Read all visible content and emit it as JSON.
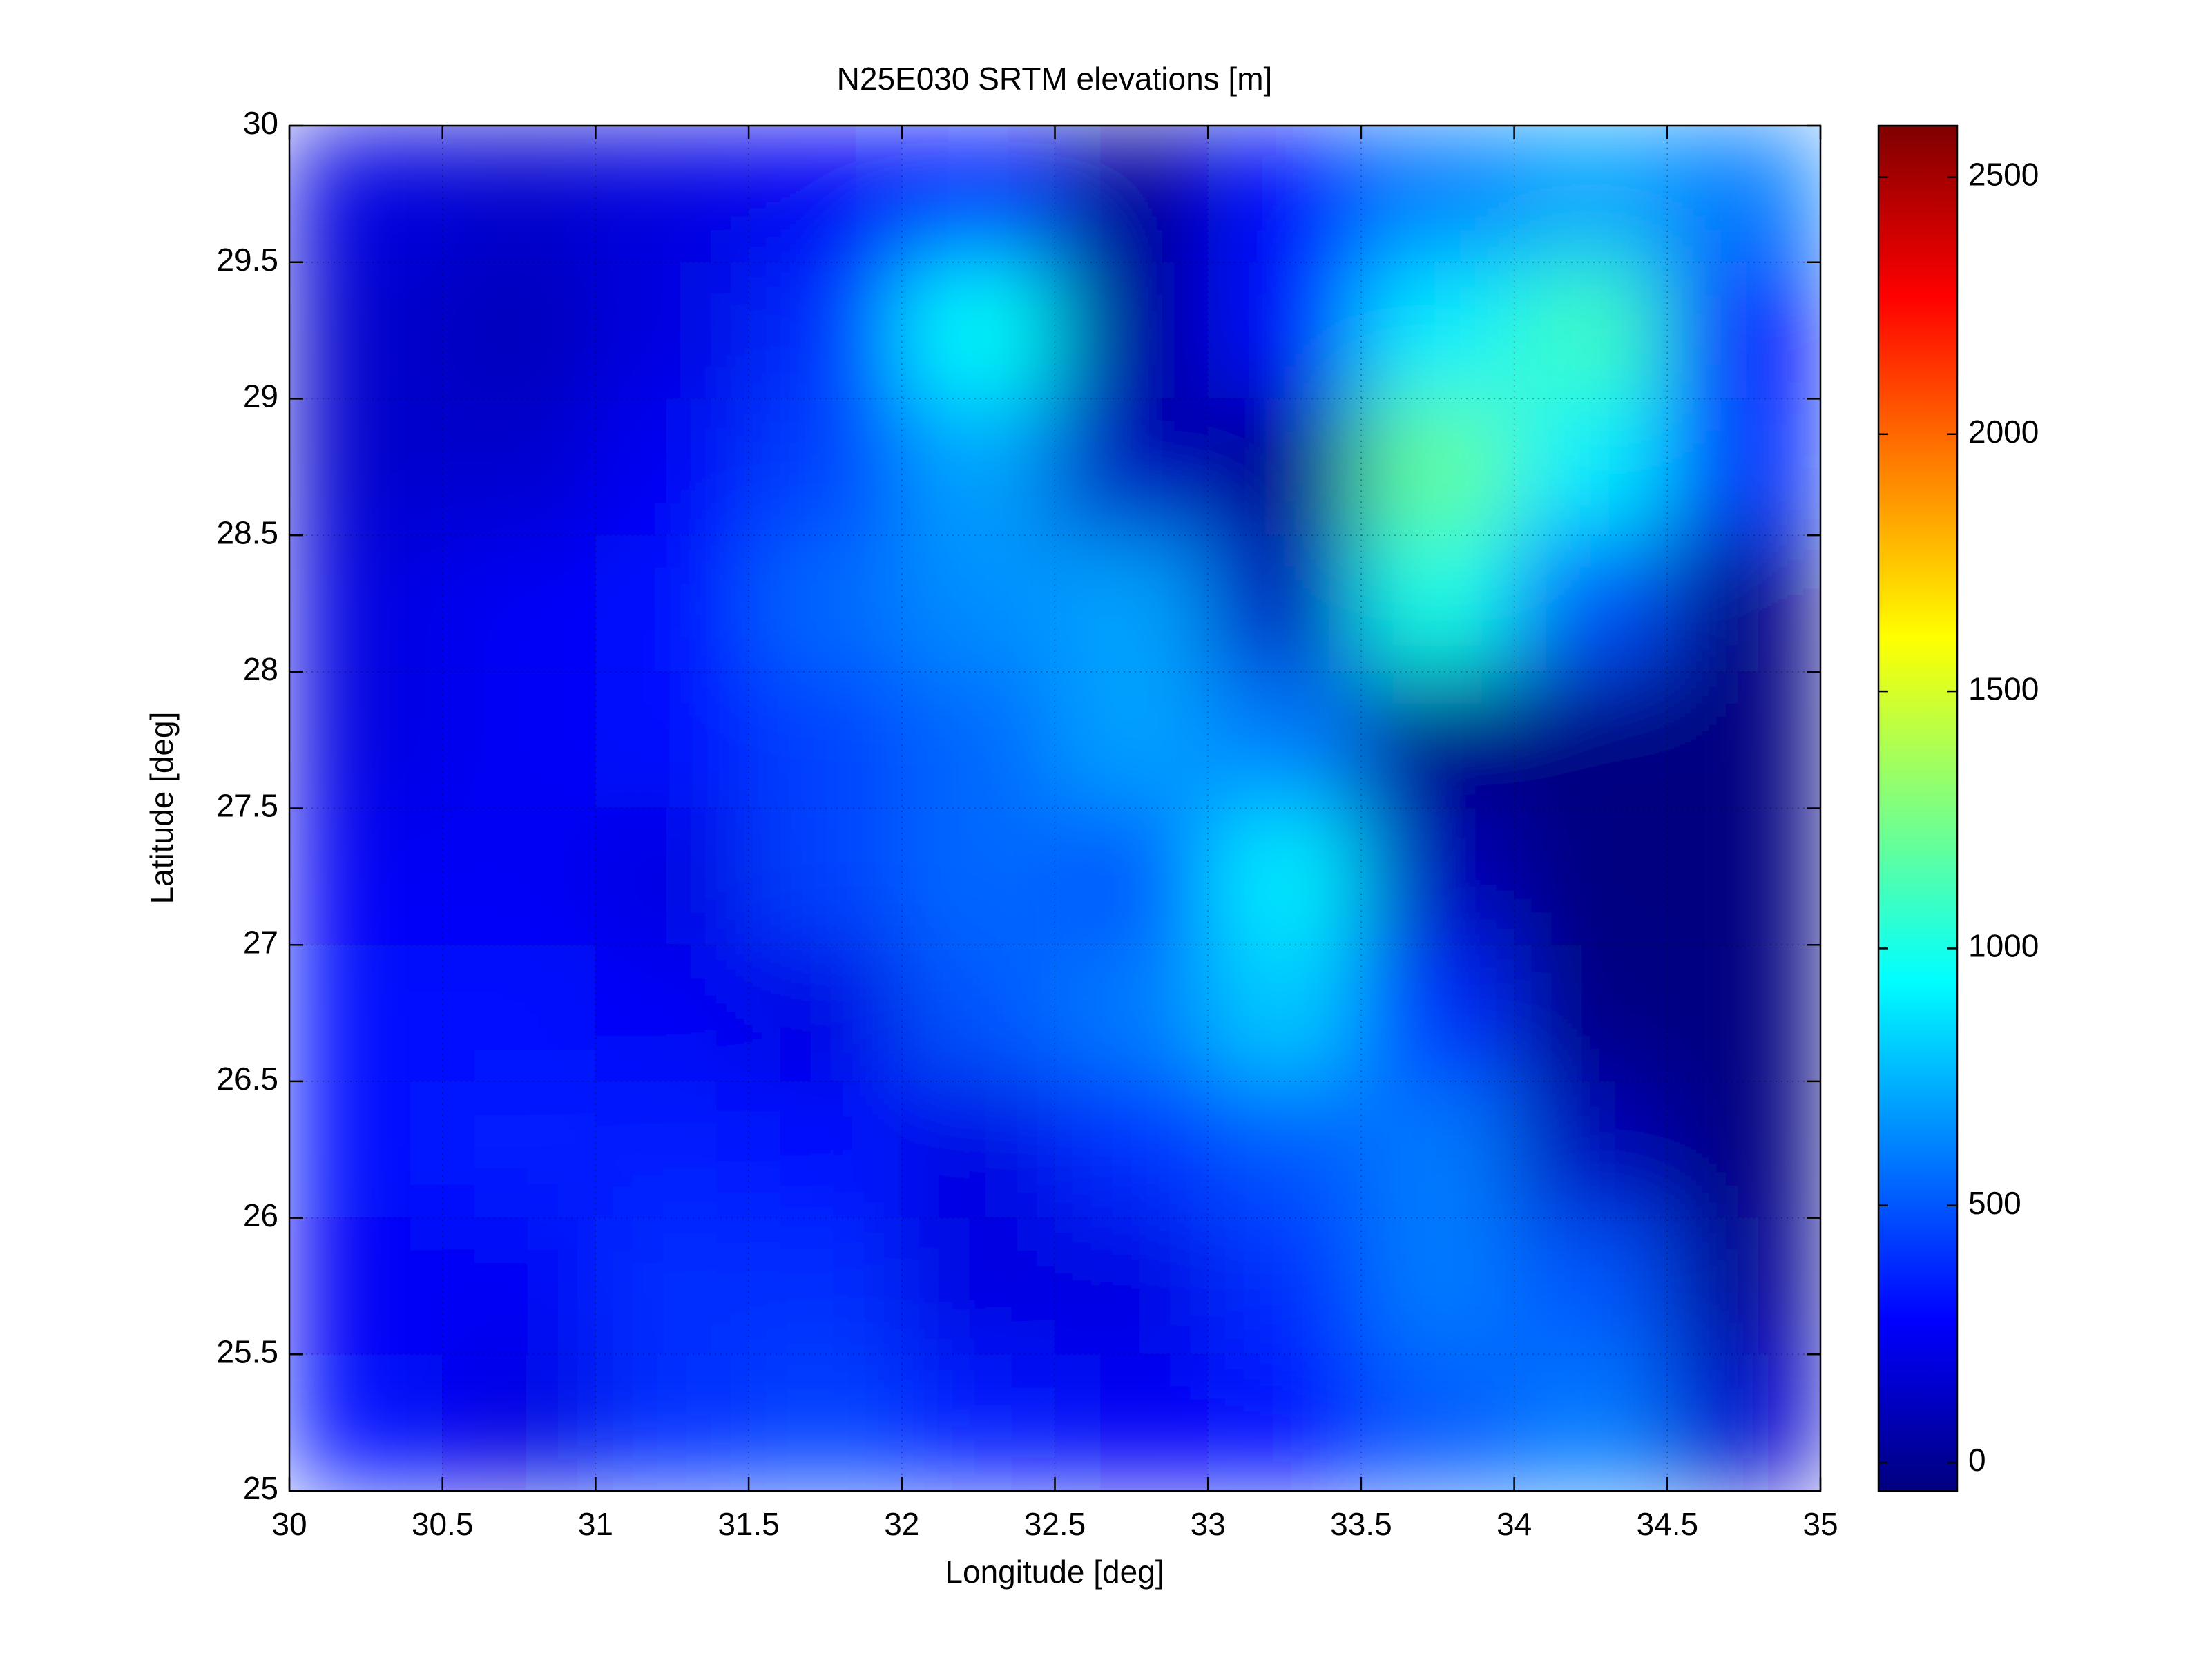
{
  "chart_data": {
    "type": "heatmap",
    "title": "N25E030 SRTM elevations [m]",
    "x_label": "Longitude [deg]",
    "y_label": "Latitude [deg]",
    "xlim": [
      30,
      35
    ],
    "xticks": [
      30,
      30.5,
      31,
      31.5,
      32,
      32.5,
      33,
      33.5,
      34,
      34.5,
      35
    ],
    "ylim": [
      25,
      30
    ],
    "yticks": [
      25,
      25.5,
      26,
      26.5,
      27,
      27.5,
      28,
      28.5,
      29,
      29.5,
      30
    ],
    "grid": true,
    "colormap": "jet",
    "clim": [
      -55,
      2600
    ],
    "colorbar_ticks": [
      0,
      500,
      1000,
      1500,
      2000,
      2500
    ],
    "z": [
      [
        200,
        150,
        200,
        250,
        350,
        0,
        300,
        600,
        700,
        600
      ],
      [
        150,
        100,
        200,
        400,
        950,
        0,
        300,
        900,
        1100,
        300
      ],
      [
        150,
        150,
        250,
        450,
        700,
        100,
        -20,
        1200,
        900,
        400
      ],
      [
        200,
        250,
        300,
        550,
        650,
        700,
        100,
        1000,
        500,
        -40
      ],
      [
        200,
        250,
        300,
        450,
        550,
        700,
        600,
        -40,
        -50,
        -50
      ],
      [
        250,
        250,
        200,
        450,
        550,
        500,
        900,
        100,
        -50,
        -50
      ],
      [
        300,
        300,
        250,
        200,
        500,
        600,
        800,
        400,
        -40,
        -50
      ],
      [
        300,
        350,
        350,
        300,
        200,
        400,
        500,
        600,
        100,
        -50
      ],
      [
        250,
        250,
        400,
        400,
        200,
        200,
        400,
        600,
        500,
        0
      ],
      [
        300,
        200,
        400,
        450,
        350,
        250,
        300,
        500,
        600,
        150
      ]
    ]
  }
}
